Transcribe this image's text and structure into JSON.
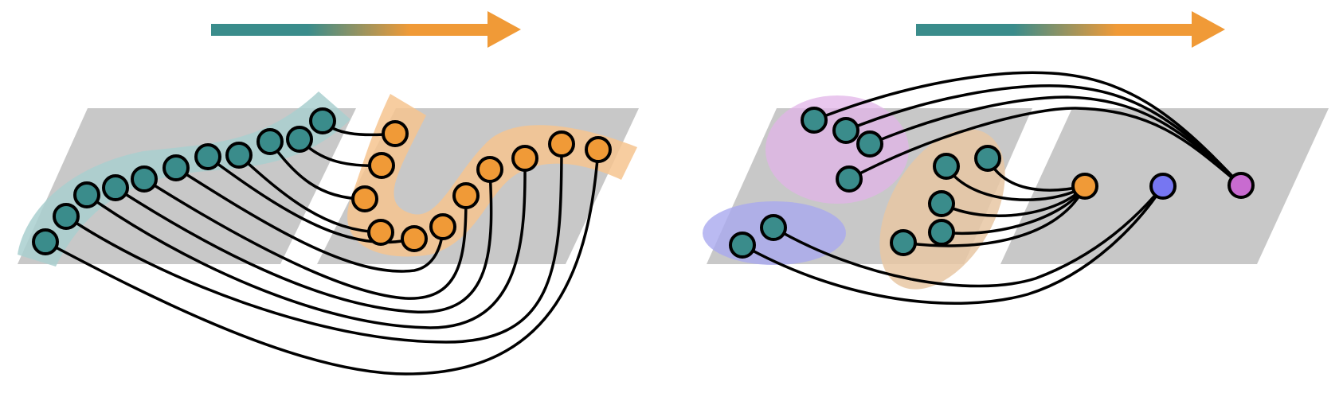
{
  "colors": {
    "background": "#ffffff",
    "plane": "#c8c8c8",
    "teal": "#3a8c8b",
    "orange": "#f09a37",
    "blue": "#7676f2",
    "magenta": "#c86bd0",
    "edge": "#000000",
    "teal_region": "#a9cfcf",
    "orange_region": "#f6c48f",
    "pink_region": "#e2b4e8",
    "blue_region": "#a9a9ef",
    "tan_region": "#e7c7a3"
  },
  "panels": [
    {
      "id": "left",
      "description_items": [
        "gradient-arrow",
        "two-plane-strips",
        "teal-sequence",
        "orange-sequence",
        "edges"
      ]
    },
    {
      "id": "right",
      "description_items": [
        "gradient-arrow",
        "two-plane-strips",
        "teal-clusters",
        "three-targets",
        "edges"
      ]
    }
  ]
}
